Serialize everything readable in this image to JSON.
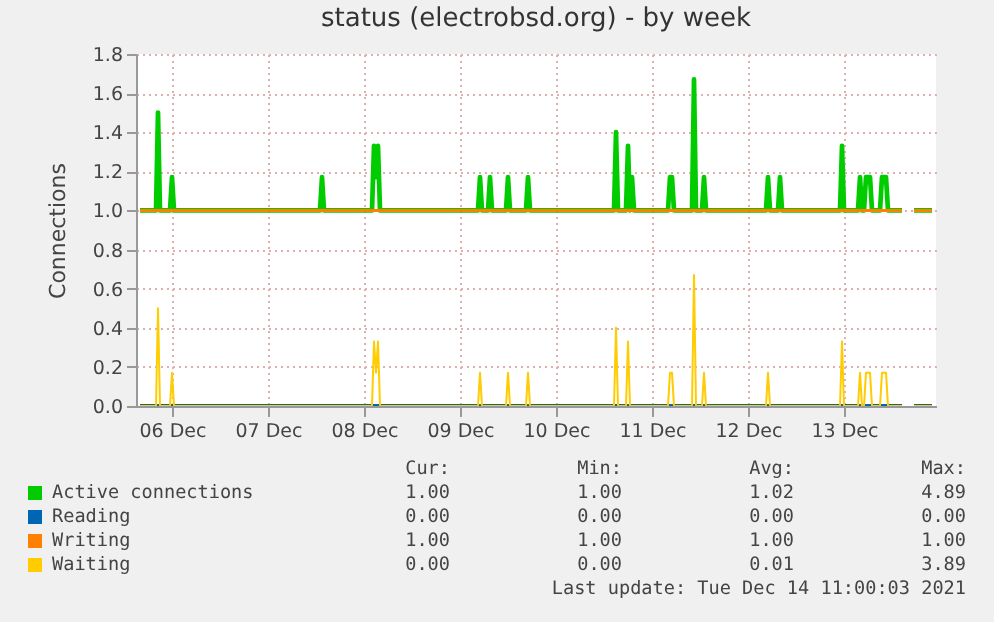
{
  "chart_data": {
    "type": "line",
    "title": "status (electrobsd.org) - by week",
    "ylabel": "Connections",
    "x": [
      "2021-12-06T04:00",
      "2021-12-06T08:00",
      "2021-12-06T08:30",
      "2021-12-06T09:00",
      "2021-12-06T11:30",
      "2021-12-06T12:00",
      "2021-12-06T12:30",
      "2021-12-08T01:00",
      "2021-12-08T01:30",
      "2021-12-08T02:00",
      "2021-12-08T14:00",
      "2021-12-08T14:30",
      "2021-12-08T15:00",
      "2021-12-08T15:30",
      "2021-12-08T16:00",
      "2021-12-09T16:30",
      "2021-12-09T17:00",
      "2021-12-09T17:30",
      "2021-12-09T19:00",
      "2021-12-09T19:30",
      "2021-12-09T20:00",
      "2021-12-09T23:30",
      "2021-12-10T00:00",
      "2021-12-10T00:30",
      "2021-12-10T04:30",
      "2021-12-10T05:00",
      "2021-12-10T05:30",
      "2021-12-11T02:30",
      "2021-12-11T03:00",
      "2021-12-11T03:30",
      "2021-12-11T05:30",
      "2021-12-11T06:00",
      "2021-12-11T06:30",
      "2021-12-11T07:00",
      "2021-12-11T07:30",
      "2021-12-11T16:00",
      "2021-12-11T16:30",
      "2021-12-11T17:00",
      "2021-12-11T17:30",
      "2021-12-11T22:00",
      "2021-12-11T22:30",
      "2021-12-11T23:00",
      "2021-12-12T00:30",
      "2021-12-12T01:00",
      "2021-12-12T01:30",
      "2021-12-12T16:30",
      "2021-12-12T17:00",
      "2021-12-12T17:30",
      "2021-12-12T19:30",
      "2021-12-12T20:00",
      "2021-12-12T20:30",
      "2021-12-13T11:00",
      "2021-12-13T11:30",
      "2021-12-13T12:00",
      "2021-12-13T15:30",
      "2021-12-13T16:00",
      "2021-12-13T16:30",
      "2021-12-13T17:00",
      "2021-12-13T17:30",
      "2021-12-13T18:00",
      "2021-12-13T18:30",
      "2021-12-13T19:00",
      "2021-12-13T21:00",
      "2021-12-13T21:30",
      "2021-12-13T22:00",
      "2021-12-13T22:30",
      "2021-12-13T23:00",
      "2021-12-14T02:30",
      "2021-12-14T03:00",
      "2021-12-14T05:30",
      "2021-12-14T10:00"
    ],
    "series": [
      {
        "name": "Active connections",
        "color": "#00cc00",
        "values": [
          1,
          1,
          1.5,
          1,
          1,
          1.17,
          1,
          1,
          1.17,
          1,
          1,
          1.33,
          1.17,
          1.33,
          1,
          1,
          1.17,
          1,
          1,
          1.17,
          1,
          1,
          1.17,
          1,
          1,
          1.17,
          1,
          1,
          1.4,
          1,
          1,
          1.33,
          1,
          1.17,
          1,
          1,
          1.17,
          1.17,
          1,
          1,
          1.67,
          1,
          1,
          1.17,
          1,
          1,
          1.17,
          1,
          1,
          1.17,
          1,
          1,
          1.33,
          1,
          1,
          1.17,
          1,
          1,
          1.17,
          1.17,
          1.17,
          1,
          1,
          1.17,
          1.17,
          1.17,
          1,
          1,
          null,
          1,
          1
        ]
      },
      {
        "name": "Reading",
        "color": "#0066b3",
        "values": [
          0,
          0,
          0,
          0,
          0,
          0,
          0,
          0,
          0,
          0,
          0,
          0,
          0,
          0,
          0,
          0,
          0,
          0,
          0,
          0,
          0,
          0,
          0,
          0,
          0,
          0,
          0,
          0,
          0,
          0,
          0,
          0,
          0,
          0,
          0,
          0,
          0,
          0,
          0,
          0,
          0,
          0,
          0,
          0,
          0,
          0,
          0,
          0,
          0,
          0,
          0,
          0,
          0,
          0,
          0,
          0,
          0,
          0,
          0,
          0,
          0,
          0,
          0,
          0,
          0,
          0,
          0,
          0,
          null,
          0,
          0
        ]
      },
      {
        "name": "Writing",
        "color": "#ff8000",
        "values": [
          1,
          1,
          1,
          1,
          1,
          1,
          1,
          1,
          1,
          1,
          1,
          1,
          1,
          1,
          1,
          1,
          1,
          1,
          1,
          1,
          1,
          1,
          1,
          1,
          1,
          1,
          1,
          1,
          1,
          1,
          1,
          1,
          1,
          1,
          1,
          1,
          1,
          1,
          1,
          1,
          1,
          1,
          1,
          1,
          1,
          1,
          1,
          1,
          1,
          1,
          1,
          1,
          1,
          1,
          1,
          1,
          1,
          1,
          1,
          1,
          1,
          1,
          1,
          1,
          1,
          1,
          1,
          1,
          null,
          1,
          1
        ]
      },
      {
        "name": "Waiting",
        "color": "#ffcc00",
        "values": [
          0,
          0,
          0.5,
          0,
          0,
          0.17,
          0,
          0,
          0,
          0,
          0,
          0.33,
          0.17,
          0.33,
          0,
          0,
          0.17,
          0,
          0,
          0,
          0,
          0,
          0.17,
          0,
          0,
          0.17,
          0,
          0,
          0.4,
          0,
          0,
          0.33,
          0,
          0,
          0,
          0,
          0.17,
          0.17,
          0,
          0,
          0.67,
          0,
          0,
          0.17,
          0,
          0,
          0.17,
          0,
          0,
          0,
          0,
          0,
          0.33,
          0,
          0,
          0.17,
          0,
          0,
          0.17,
          0.17,
          0.17,
          0,
          0,
          0.17,
          0.17,
          0.17,
          0,
          0,
          null,
          0,
          0
        ]
      }
    ],
    "xlim": [
      "2021-12-06T03:00",
      "2021-12-14T11:00"
    ],
    "xticks": [
      {
        "value": "2021-12-06T12:00",
        "label": "06 Dec"
      },
      {
        "value": "2021-12-07T12:00",
        "label": "07 Dec"
      },
      {
        "value": "2021-12-08T12:00",
        "label": "08 Dec"
      },
      {
        "value": "2021-12-09T12:00",
        "label": "09 Dec"
      },
      {
        "value": "2021-12-10T12:00",
        "label": "10 Dec"
      },
      {
        "value": "2021-12-11T12:00",
        "label": "11 Dec"
      },
      {
        "value": "2021-12-12T12:00",
        "label": "12 Dec"
      },
      {
        "value": "2021-12-13T12:00",
        "label": "13 Dec"
      }
    ],
    "ylim": [
      0,
      1.8
    ],
    "yticks": [
      {
        "value": 0,
        "label": "0.0"
      },
      {
        "value": 0.2,
        "label": "0.2"
      },
      {
        "value": 0.4,
        "label": "0.4"
      },
      {
        "value": 0.6,
        "label": "0.6"
      },
      {
        "value": 0.8,
        "label": "0.8"
      },
      {
        "value": 1,
        "label": "1.0"
      },
      {
        "value": 1.2,
        "label": "1.2"
      },
      {
        "value": 1.4,
        "label": "1.4"
      },
      {
        "value": 1.6,
        "label": "1.6"
      },
      {
        "value": 1.8,
        "label": "1.8"
      }
    ],
    "grid": true,
    "legend": "bottom",
    "annotations": [
      "Cur:",
      "Min:",
      "Avg:",
      "Max:",
      "1.00",
      "1.00",
      "1.02",
      "4.89",
      "0.00",
      "0.00",
      "0.00",
      "0.00",
      "1.00",
      "1.00",
      "1.00",
      "1.00",
      "0.00",
      "0.00",
      "0.01",
      "3.89",
      "Last update: Tue Dec 14 11:00:03 2021"
    ]
  }
}
